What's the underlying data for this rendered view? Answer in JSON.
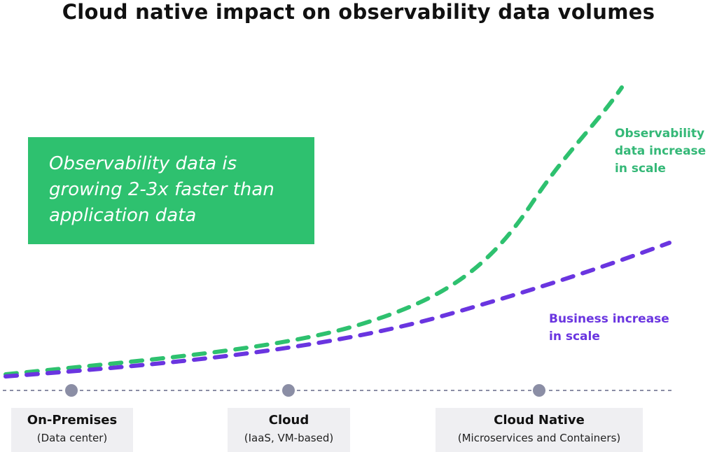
{
  "title": "Cloud native impact on observability data volumes",
  "callout": {
    "text": "Observability data is growing 2-3x faster than application data"
  },
  "series": [
    {
      "name": "Observability data increase in scale",
      "color": "#2ec16f"
    },
    {
      "name": "Business increase in scale",
      "color": "#6a35e0"
    }
  ],
  "stages": [
    {
      "name": "On-Premises",
      "sub": "(Data center)"
    },
    {
      "name": "Cloud",
      "sub": "(IaaS, VM-based)"
    },
    {
      "name": "Cloud Native",
      "sub": "(Microservices and Containers)"
    }
  ],
  "axis_color": "#8b8ea5"
}
